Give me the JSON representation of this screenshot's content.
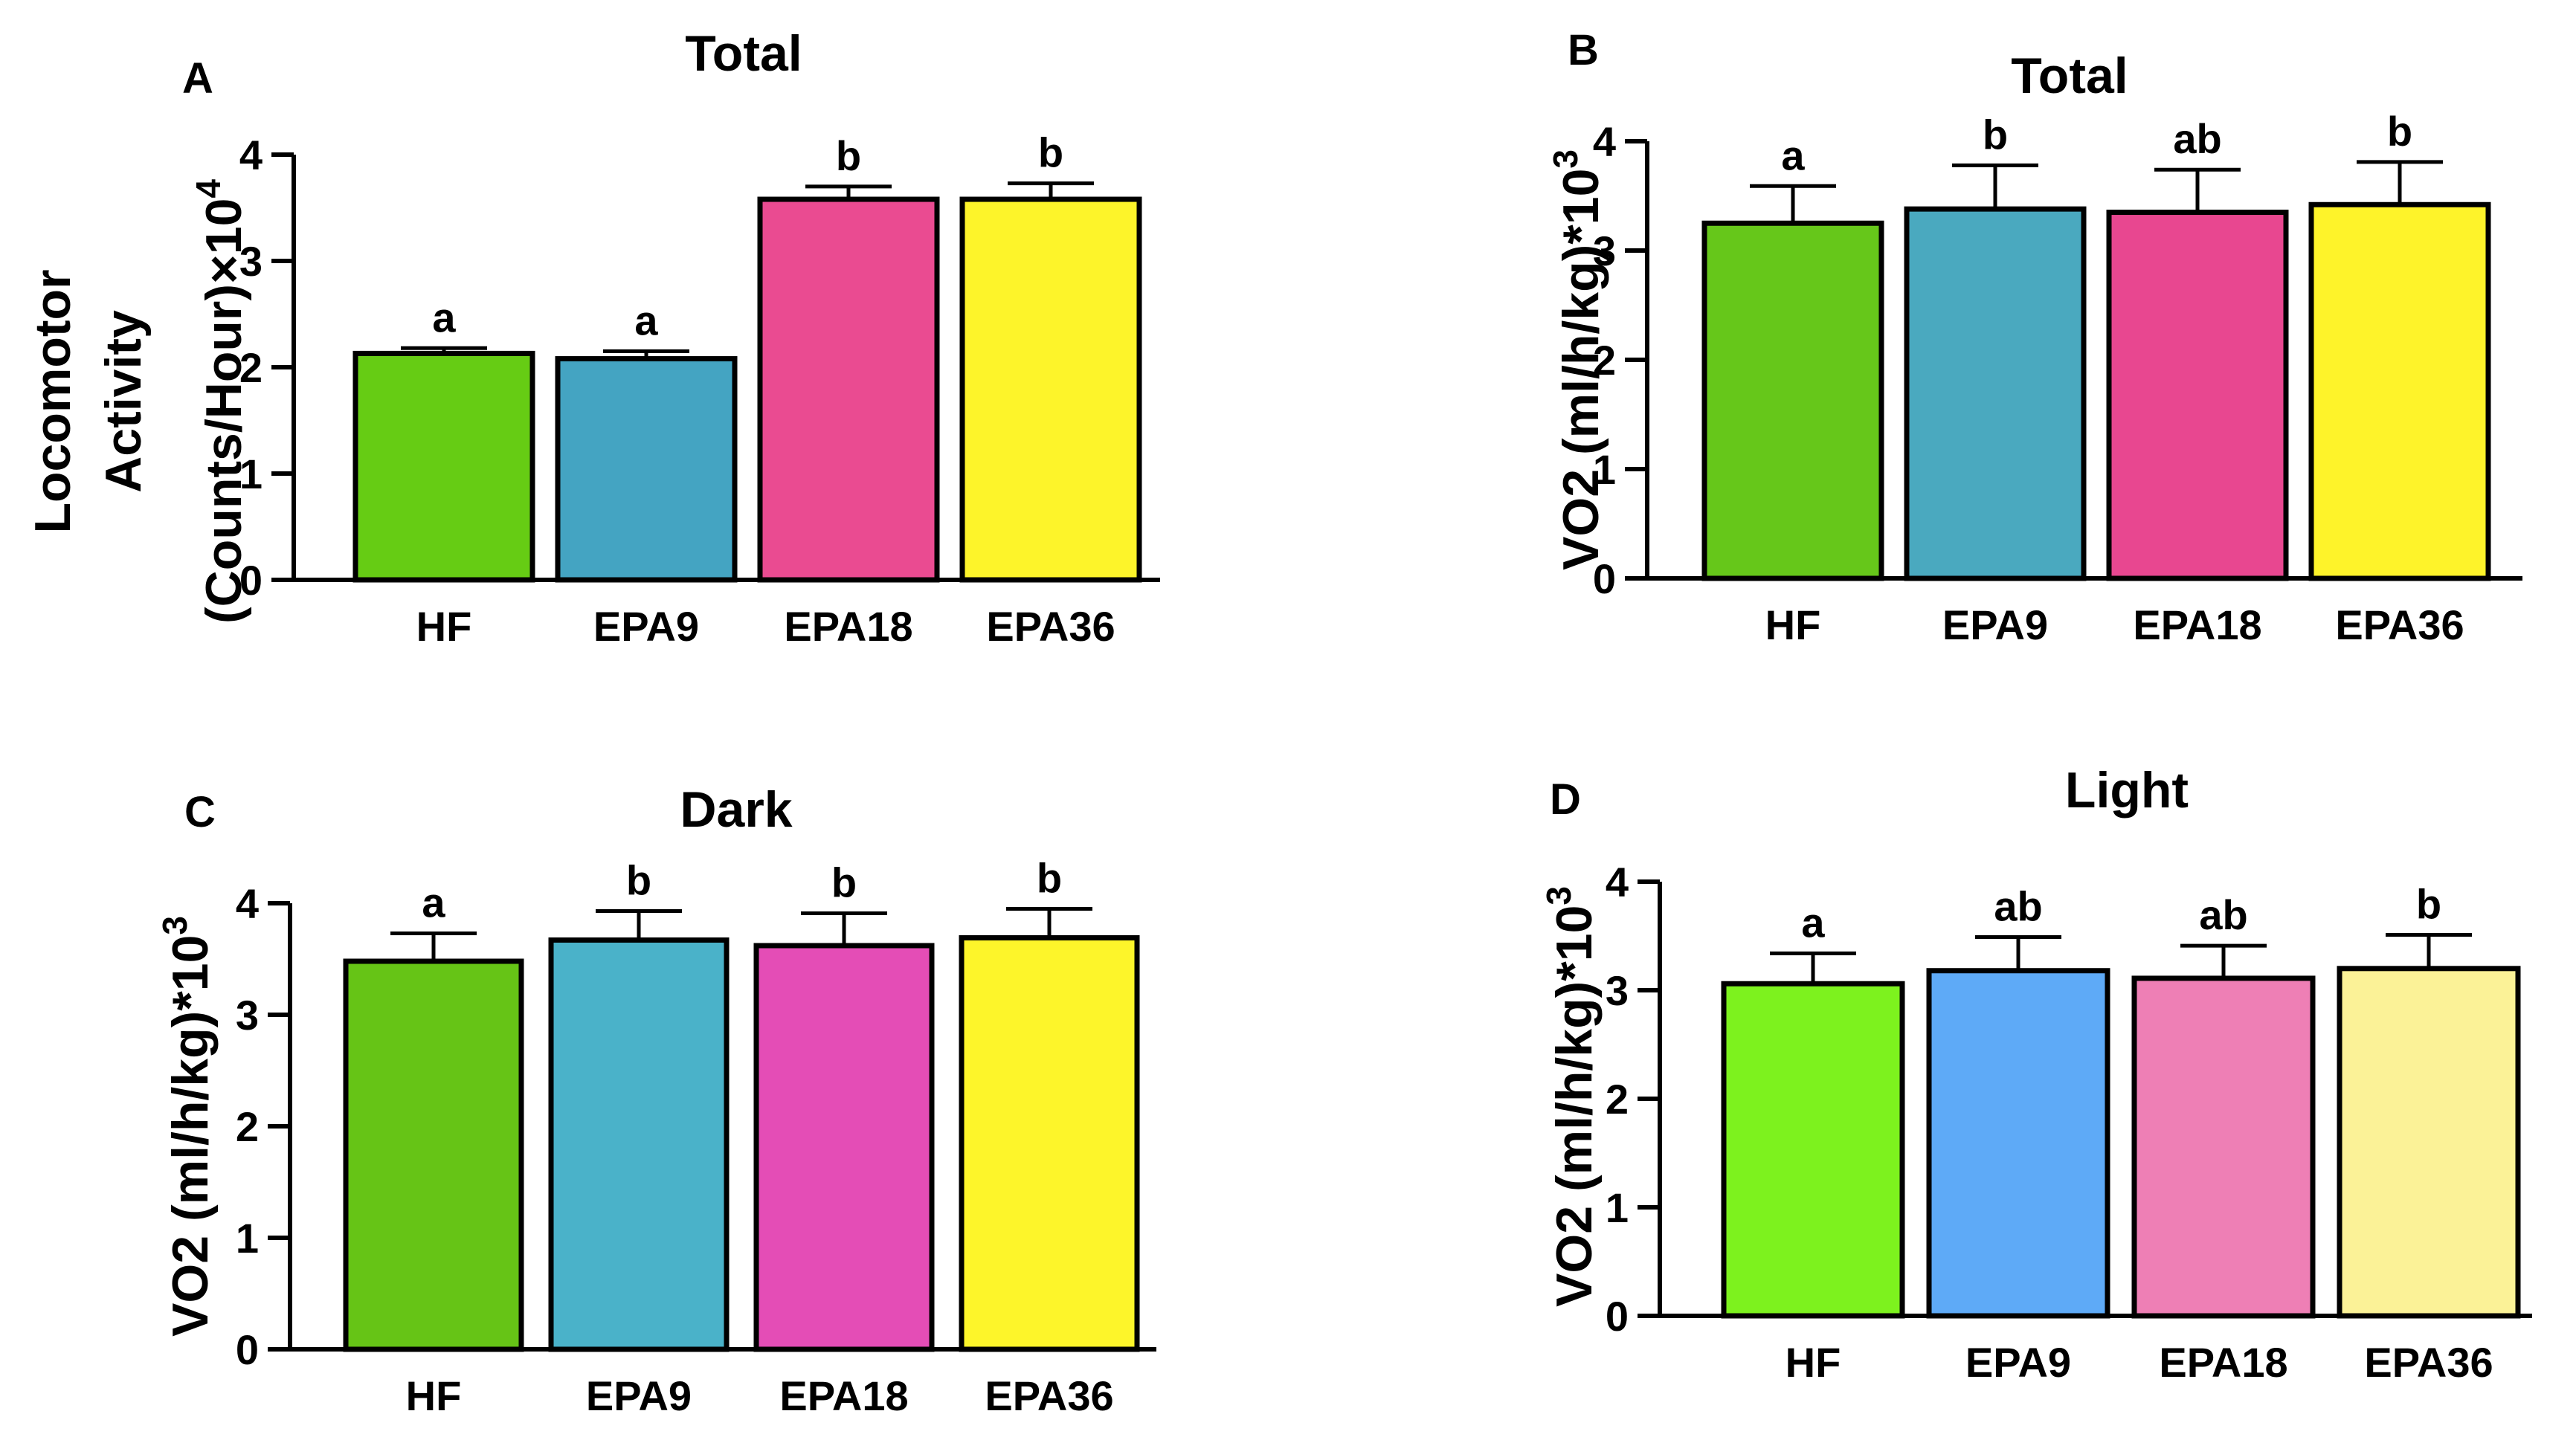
{
  "chart_data": [
    {
      "type": "bar",
      "panel": "A",
      "title": "Total",
      "ylabel_lines": [
        "Locomotor",
        "Activity",
        "(Counts/Hour)×10"
      ],
      "ylabel_exponent": "4",
      "xlabel": "",
      "categories": [
        "HF",
        "EPA9",
        "EPA18",
        "EPA36"
      ],
      "values": [
        2.13,
        2.08,
        3.58,
        3.58
      ],
      "errors": [
        0.05,
        0.07,
        0.12,
        0.15
      ],
      "significance": [
        "a",
        "a",
        "b",
        "b"
      ],
      "colors": [
        "#66cc14",
        "#44a4c2",
        "#ea4b91",
        "#fdf42a"
      ],
      "ylim": [
        0,
        4
      ],
      "yticks": [
        "0",
        "1",
        "2",
        "3",
        "4"
      ]
    },
    {
      "type": "bar",
      "panel": "B",
      "title": "Total",
      "ylabel_lines": [
        "VO2 (ml/h/kg)*10"
      ],
      "ylabel_exponent": "3",
      "xlabel": "",
      "categories": [
        "HF",
        "EPA9",
        "EPA18",
        "EPA36"
      ],
      "values": [
        3.25,
        3.38,
        3.35,
        3.42
      ],
      "errors": [
        0.34,
        0.4,
        0.39,
        0.39
      ],
      "significance": [
        "a",
        "b",
        "ab",
        "b"
      ],
      "colors": [
        "#66c71a",
        "#4aa9bf",
        "#e84790",
        "#fef32a"
      ],
      "ylim": [
        0,
        4
      ],
      "yticks": [
        "0",
        "1",
        "2",
        "3",
        "4"
      ]
    },
    {
      "type": "bar",
      "panel": "C",
      "title": "Dark",
      "ylabel_lines": [
        "VO2 (ml/h/kg)*10"
      ],
      "ylabel_exponent": "3",
      "xlabel": "",
      "categories": [
        "HF",
        "EPA9",
        "EPA18",
        "EPA36"
      ],
      "values": [
        3.48,
        3.67,
        3.62,
        3.69
      ],
      "errors": [
        0.25,
        0.26,
        0.29,
        0.26
      ],
      "significance": [
        "a",
        "b",
        "b",
        "b"
      ],
      "colors": [
        "#66c416",
        "#4ab2c9",
        "#e44db6",
        "#fdf52a"
      ],
      "ylim": [
        0,
        4
      ],
      "yticks": [
        "0",
        "1",
        "2",
        "3",
        "4"
      ]
    },
    {
      "type": "bar",
      "panel": "D",
      "title": "Light",
      "ylabel_lines": [
        "VO2 (ml/h/kg)*10"
      ],
      "ylabel_exponent": "3",
      "xlabel": "",
      "categories": [
        "HF",
        "EPA9",
        "EPA18",
        "EPA36"
      ],
      "values": [
        3.06,
        3.18,
        3.11,
        3.2
      ],
      "errors": [
        0.28,
        0.31,
        0.3,
        0.31
      ],
      "significance": [
        "a",
        "ab",
        "ab",
        "b"
      ],
      "colors": [
        "#7df21e",
        "#5eaaf7",
        "#ee7fb5",
        "#fbf297"
      ],
      "ylim": [
        0,
        4
      ],
      "yticks": [
        "0",
        "1",
        "2",
        "3",
        "4"
      ]
    }
  ]
}
